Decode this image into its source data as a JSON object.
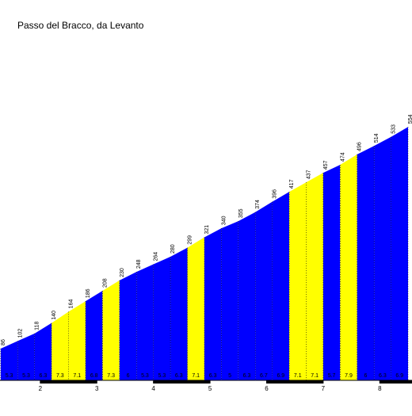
{
  "chart_data": {
    "type": "climb-profile",
    "title": "Passo del Bracco, da Levanto",
    "x": [
      1.3,
      1.6,
      1.9,
      2.2,
      2.5,
      2.8,
      3.1,
      3.4,
      3.7,
      4.0,
      4.3,
      4.6,
      4.9,
      5.2,
      5.5,
      5.8,
      6.1,
      6.4,
      6.7,
      7.0,
      7.3,
      7.6,
      7.9,
      8.2,
      8.5
    ],
    "values": [
      86,
      102,
      118,
      140,
      164,
      186,
      208,
      230,
      248,
      264,
      280,
      299,
      321,
      340,
      355,
      374,
      396,
      417,
      437,
      457,
      474,
      496,
      514,
      533,
      554
    ],
    "gradients": [
      5.3,
      5.3,
      6.3,
      7.3,
      7.1,
      6.8,
      7.3,
      6.0,
      5.3,
      5.3,
      6.3,
      7.1,
      6.3,
      5.0,
      6.3,
      6.7,
      6.9,
      7.1,
      7.1,
      5.7,
      7.9,
      6.0,
      6.3,
      6.9
    ],
    "segment_colors": [
      "#0000ff",
      "#0000ff",
      "#0000ff",
      "#ffff00",
      "#ffff00",
      "#0000ff",
      "#ffff00",
      "#0000ff",
      "#0000ff",
      "#0000ff",
      "#0000ff",
      "#ffff00",
      "#0000ff",
      "#0000ff",
      "#0000ff",
      "#0000ff",
      "#0000ff",
      "#ffff00",
      "#ffff00",
      "#0000ff",
      "#ffff00",
      "#0000ff",
      "#0000ff",
      "#0000ff"
    ],
    "xlim": [
      1.288,
      8.57
    ],
    "ylim": [
      19,
      822
    ],
    "xticks": [
      2,
      3,
      4,
      5,
      6,
      7,
      8
    ]
  }
}
